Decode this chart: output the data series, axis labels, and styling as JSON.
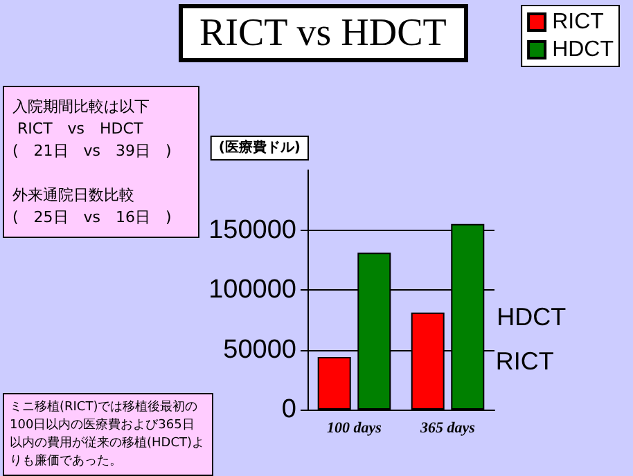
{
  "chart_data": {
    "type": "bar",
    "title": "RICT vs HDCT",
    "ylabel": "(医療費ドル)",
    "categories": [
      "100 days",
      "365 days"
    ],
    "series": [
      {
        "name": "RICT",
        "color": "#ff0000",
        "values": [
          44000,
          81000
        ]
      },
      {
        "name": "HDCT",
        "color": "#008000",
        "values": [
          131000,
          155000
        ]
      }
    ],
    "ylim": [
      0,
      200000
    ],
    "yticks": [
      0,
      50000,
      100000,
      150000
    ],
    "grid": "y",
    "legend": "top right",
    "annotations": [
      "入院期間比較は以下\n RICT　vs　HDCT\n(　21日　vs　39日　)\n\n外来通院日数比較\n(　25日　vs　16日　)",
      "ミニ移植(RICT)では移植後最初の100日以内の医療費および365日以内の費用が従来の移植(HDCT)よりも廉価であった。"
    ]
  }
}
